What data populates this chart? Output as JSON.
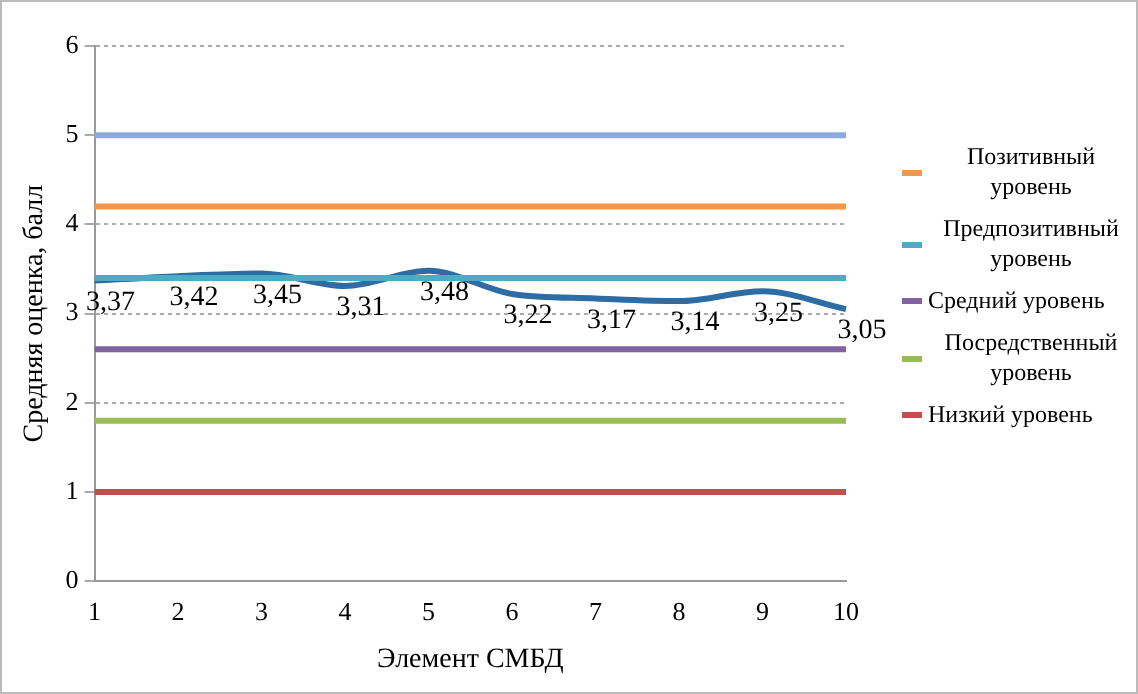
{
  "chart_data": {
    "type": "line",
    "xlabel": "Элемент СМБД",
    "ylabel": "Средняя оценка, балл",
    "categories": [
      "1",
      "2",
      "3",
      "4",
      "5",
      "6",
      "7",
      "8",
      "9",
      "10"
    ],
    "series": [
      {
        "color": "#8eaadb",
        "values": [
          5,
          5,
          5,
          5,
          5,
          5,
          5,
          5,
          5,
          5
        ]
      },
      {
        "name": "Позитивный уровень",
        "color": "#f79646",
        "values": [
          4.2,
          4.2,
          4.2,
          4.2,
          4.2,
          4.2,
          4.2,
          4.2,
          4.2,
          4.2
        ]
      },
      {
        "name": "Предпозитивный уровень",
        "color": "#4bacc6",
        "values": [
          3.4,
          3.4,
          3.4,
          3.4,
          3.4,
          3.4,
          3.4,
          3.4,
          3.4,
          3.4
        ]
      },
      {
        "name": "Средний уровень",
        "color": "#8064a2",
        "values": [
          2.6,
          2.6,
          2.6,
          2.6,
          2.6,
          2.6,
          2.6,
          2.6,
          2.6,
          2.6
        ]
      },
      {
        "name": "Посредственный уровень",
        "color": "#9bbb59",
        "values": [
          1.8,
          1.8,
          1.8,
          1.8,
          1.8,
          1.8,
          1.8,
          1.8,
          1.8,
          1.8
        ]
      },
      {
        "name": "Низкий уровень",
        "color": "#c0504d",
        "values": [
          1,
          1,
          1,
          1,
          1,
          1,
          1,
          1,
          1,
          1
        ]
      },
      {
        "color": "#2e6da4",
        "values": [
          3.37,
          3.42,
          3.45,
          3.31,
          3.48,
          3.22,
          3.17,
          3.14,
          3.25,
          3.05
        ],
        "value_labels": [
          "3,37",
          "3,42",
          "3,45",
          "3,31",
          "3,48",
          "3,22",
          "3,17",
          "3,14",
          "3,25",
          "3,05"
        ]
      }
    ],
    "ylim": [
      0,
      6
    ],
    "yticks": [
      0,
      1,
      2,
      3,
      4,
      5,
      6
    ],
    "grid": "y",
    "legend": "right",
    "marker": "none",
    "line_style": "solid"
  }
}
